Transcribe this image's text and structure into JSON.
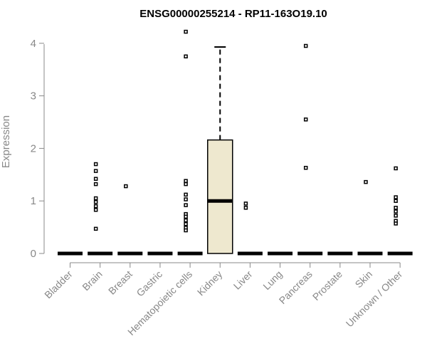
{
  "chart_data": {
    "type": "boxplot",
    "title": "ENSG00000255214 - RP11-163O19.10",
    "xlabel": "",
    "ylabel": "Expression",
    "ylim": [
      0,
      4.2
    ],
    "yticks": [
      0,
      1,
      2,
      3,
      4
    ],
    "colors": {
      "box_fill": "#EEE8CF",
      "axis": "#888888",
      "stroke": "#000000"
    },
    "categories": [
      "Bladder",
      "Brain",
      "Breast",
      "Gastric",
      "Hematopoietic cells",
      "Kidney",
      "Liver",
      "Lung",
      "Pancreas",
      "Prostate",
      "Skin",
      "Unknown / Other"
    ],
    "boxes": [
      {
        "category": "Bladder",
        "q1": 0,
        "median": 0,
        "q3": 0,
        "whisker_low": 0,
        "whisker_high": 0,
        "outliers": []
      },
      {
        "category": "Brain",
        "q1": 0,
        "median": 0,
        "q3": 0,
        "whisker_low": 0,
        "whisker_high": 0,
        "outliers": [
          1.7,
          1.57,
          1.42,
          1.32,
          1.05,
          0.98,
          0.9,
          0.83,
          0.47
        ]
      },
      {
        "category": "Breast",
        "q1": 0,
        "median": 0,
        "q3": 0,
        "whisker_low": 0,
        "whisker_high": 0,
        "outliers": [
          1.28
        ]
      },
      {
        "category": "Gastric",
        "q1": 0,
        "median": 0,
        "q3": 0,
        "whisker_low": 0,
        "whisker_high": 0,
        "outliers": []
      },
      {
        "category": "Hematopoietic cells",
        "q1": 0,
        "median": 0,
        "q3": 0,
        "whisker_low": 0,
        "whisker_high": 0,
        "outliers": [
          4.22,
          3.75,
          1.38,
          1.32,
          1.12,
          1.03,
          0.92,
          0.75,
          0.7,
          0.63,
          0.56,
          0.49,
          0.44
        ]
      },
      {
        "category": "Kidney",
        "q1": 0,
        "median": 1.0,
        "q3": 2.16,
        "whisker_low": 0,
        "whisker_high": 3.93,
        "outliers": []
      },
      {
        "category": "Liver",
        "q1": 0,
        "median": 0,
        "q3": 0,
        "whisker_low": 0,
        "whisker_high": 0,
        "outliers": [
          0.95,
          0.87
        ]
      },
      {
        "category": "Lung",
        "q1": 0,
        "median": 0,
        "q3": 0,
        "whisker_low": 0,
        "whisker_high": 0,
        "outliers": []
      },
      {
        "category": "Pancreas",
        "q1": 0,
        "median": 0,
        "q3": 0,
        "whisker_low": 0,
        "whisker_high": 0,
        "outliers": [
          3.95,
          2.55,
          1.63
        ]
      },
      {
        "category": "Prostate",
        "q1": 0,
        "median": 0,
        "q3": 0,
        "whisker_low": 0,
        "whisker_high": 0,
        "outliers": []
      },
      {
        "category": "Skin",
        "q1": 0,
        "median": 0,
        "q3": 0,
        "whisker_low": 0,
        "whisker_high": 0,
        "outliers": [
          1.36
        ]
      },
      {
        "category": "Unknown / Other",
        "q1": 0,
        "median": 0,
        "q3": 0,
        "whisker_low": 0,
        "whisker_high": 0,
        "outliers": [
          1.62,
          1.07,
          1.0,
          0.87,
          0.8,
          0.72,
          0.62,
          0.57
        ]
      }
    ]
  }
}
